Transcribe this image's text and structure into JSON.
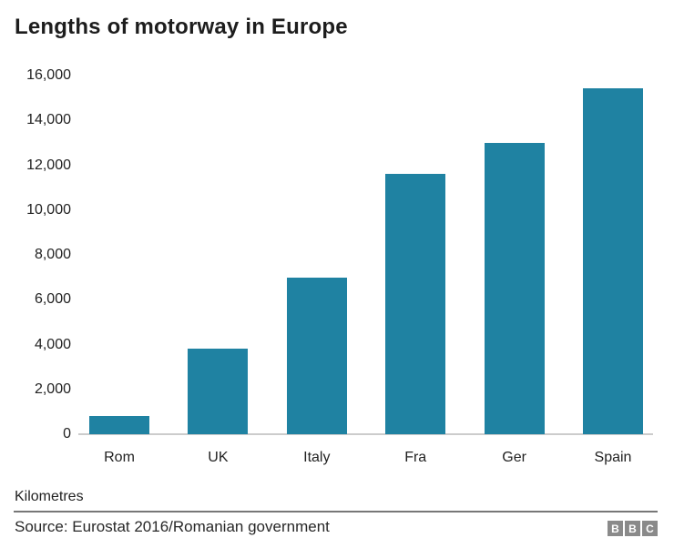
{
  "header": {
    "title": "Lengths of motorway in Europe"
  },
  "chart_data": {
    "type": "bar",
    "title": "Lengths of motorway in Europe",
    "categories": [
      "Rom",
      "UK",
      "Italy",
      "Fra",
      "Ger",
      "Spain"
    ],
    "values": [
      800,
      3800,
      7000,
      11600,
      13000,
      15450
    ],
    "xlabel": "",
    "ylabel": "Kilometres",
    "ylim": [
      0,
      16000
    ],
    "ytick_values": [
      0,
      2000,
      4000,
      6000,
      8000,
      10000,
      12000,
      14000,
      16000
    ],
    "ytick_labels": [
      "0",
      "2,000",
      "4,000",
      "6,000",
      "8,000",
      "10,000",
      "12,000",
      "14,000",
      "16,000"
    ],
    "grid": false,
    "legend": "none",
    "bar_color": "#1f82a2"
  },
  "footer": {
    "unit_label": "Kilometres",
    "source": "Source: Eurostat 2016/Romanian government",
    "logo": {
      "letters": [
        "B",
        "B",
        "C"
      ],
      "block_color": "#8a8a8a",
      "letter_color": "#ffffff"
    }
  },
  "colors": {
    "bar": "#1f82a2",
    "axis_line": "#cccccc",
    "footer_divider": "#777777",
    "text": "#222222"
  }
}
